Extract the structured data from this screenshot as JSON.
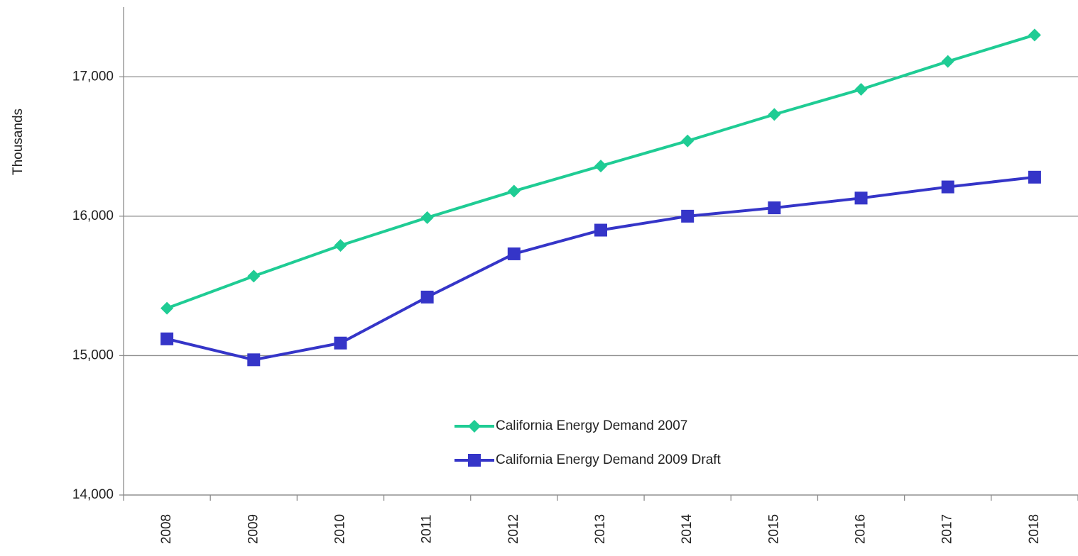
{
  "chart_data": {
    "type": "line",
    "y_label": "Thousands",
    "categories": [
      "2008",
      "2009",
      "2010",
      "2011",
      "2012",
      "2013",
      "2014",
      "2015",
      "2016",
      "2017",
      "2018"
    ],
    "series": [
      {
        "name": "California Energy Demand 2007",
        "color": "#1fcc94",
        "marker": "diamond",
        "values": [
          15340,
          15570,
          15790,
          15990,
          16180,
          16360,
          16540,
          16730,
          16910,
          17110,
          17300
        ]
      },
      {
        "name": "California Energy Demand 2009 Draft",
        "color": "#3535c8",
        "marker": "square",
        "values": [
          15120,
          14970,
          15090,
          15420,
          15730,
          15900,
          16000,
          16060,
          16130,
          16210,
          16280
        ]
      }
    ],
    "ylim": [
      14000,
      17500
    ],
    "yticks": [
      {
        "value": 14000,
        "label": "14,000"
      },
      {
        "value": 15000,
        "label": "15,000"
      },
      {
        "value": 16000,
        "label": "16,000"
      },
      {
        "value": 17000,
        "label": "17,000"
      }
    ],
    "grid": true,
    "legend": "inside-bottom-center"
  }
}
